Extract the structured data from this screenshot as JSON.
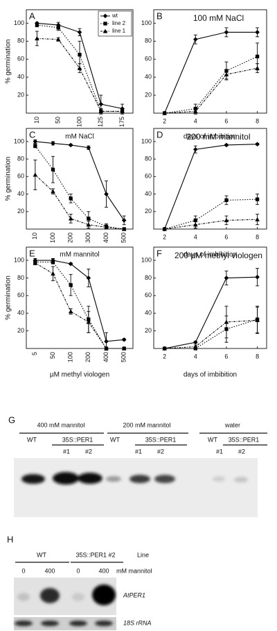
{
  "chart_data": [
    {
      "type": "line",
      "panel": "A",
      "ylabel": "% germination",
      "xlabel": "mM NaCl",
      "categories": [
        "10",
        "50",
        "100",
        "125",
        "175"
      ],
      "ylim": [
        0,
        115
      ],
      "yticks": [
        20,
        40,
        60,
        80,
        100
      ],
      "legend": "upper right",
      "series": [
        {
          "name": "wt",
          "color": "#000",
          "marker": "diamond",
          "dash": "solid",
          "values": [
            100,
            98,
            90,
            10,
            5
          ],
          "errors": [
            1,
            3,
            4,
            10,
            5
          ]
        },
        {
          "name": "line 2",
          "color": "#000",
          "marker": "square",
          "dash": "dotted",
          "values": [
            98,
            95,
            65,
            2,
            2
          ],
          "errors": [
            2,
            3,
            15,
            3,
            3
          ]
        },
        {
          "name": "line 1",
          "color": "#000",
          "marker": "triangle",
          "dash": "dashdot",
          "values": [
            83,
            82,
            50,
            2,
            2
          ],
          "errors": [
            8,
            2,
            5,
            2,
            2
          ]
        }
      ]
    },
    {
      "type": "line",
      "panel": "B",
      "title": "100 mM NaCl",
      "xlabel": "days of imbibition",
      "x": [
        2,
        4,
        6,
        8
      ],
      "xlim": [
        1.3,
        8.6
      ],
      "xticks": [
        2,
        4,
        6,
        8
      ],
      "ylim": [
        0,
        115
      ],
      "yticks": [
        20,
        40,
        60,
        80,
        100
      ],
      "series": [
        {
          "name": "wt",
          "color": "#000",
          "marker": "diamond",
          "dash": "solid",
          "values": [
            0,
            82,
            90,
            90
          ],
          "errors": [
            0,
            5,
            5,
            5
          ]
        },
        {
          "name": "line 2",
          "color": "#000",
          "marker": "square",
          "dash": "dotted",
          "values": [
            0,
            5,
            47,
            63
          ],
          "errors": [
            0,
            5,
            10,
            15
          ]
        },
        {
          "name": "line 1",
          "color": "#000",
          "marker": "triangle",
          "dash": "dashdot",
          "values": [
            0,
            2,
            43,
            50
          ],
          "errors": [
            0,
            3,
            5,
            5
          ]
        }
      ]
    },
    {
      "type": "line",
      "panel": "C",
      "ylabel": "% germination",
      "xlabel": "mM mannitol",
      "categories": [
        "10",
        "100",
        "200",
        "300",
        "400",
        "500"
      ],
      "ylim": [
        0,
        115
      ],
      "yticks": [
        20,
        40,
        60,
        80,
        100
      ],
      "series": [
        {
          "name": "wt",
          "color": "#000",
          "marker": "diamond",
          "dash": "solid",
          "values": [
            100,
            98,
            96,
            93,
            40,
            10
          ],
          "errors": [
            2,
            2,
            1,
            2,
            15,
            5
          ]
        },
        {
          "name": "line 2",
          "color": "#000",
          "marker": "square",
          "dash": "dotted",
          "values": [
            95,
            68,
            35,
            12,
            3,
            0
          ],
          "errors": [
            2,
            15,
            5,
            8,
            3,
            1
          ]
        },
        {
          "name": "line 1",
          "color": "#000",
          "marker": "triangle",
          "dash": "dashdot",
          "values": [
            62,
            43,
            12,
            5,
            2,
            0
          ],
          "errors": [
            17,
            3,
            5,
            4,
            2,
            1
          ]
        }
      ]
    },
    {
      "type": "line",
      "panel": "D",
      "title": "200 mM mannitol",
      "xlabel": "days of imbibition",
      "x": [
        2,
        4,
        6,
        8
      ],
      "xlim": [
        1.3,
        8.6
      ],
      "xticks": [
        2,
        4,
        6,
        8
      ],
      "ylim": [
        0,
        115
      ],
      "yticks": [
        20,
        40,
        60,
        80,
        100
      ],
      "series": [
        {
          "name": "wt",
          "color": "#000",
          "marker": "diamond",
          "dash": "solid",
          "values": [
            0,
            91,
            96,
            97
          ],
          "errors": [
            0,
            4,
            1,
            1
          ]
        },
        {
          "name": "line 2",
          "color": "#000",
          "marker": "square",
          "dash": "dotted",
          "values": [
            0,
            10,
            33,
            34
          ],
          "errors": [
            0,
            5,
            5,
            6
          ]
        },
        {
          "name": "line 1",
          "color": "#000",
          "marker": "triangle",
          "dash": "dashdot",
          "values": [
            0,
            5,
            10,
            11
          ],
          "errors": [
            0,
            4,
            5,
            6
          ]
        }
      ]
    },
    {
      "type": "line",
      "panel": "E",
      "ylabel": "% germination",
      "xlabel": "µM methyl viologen",
      "categories": [
        "5",
        "50",
        "100",
        "200",
        "400",
        "500"
      ],
      "ylim": [
        0,
        115
      ],
      "yticks": [
        20,
        40,
        60,
        80,
        100
      ],
      "series": [
        {
          "name": "wt",
          "color": "#000",
          "marker": "diamond",
          "dash": "solid",
          "values": [
            100,
            100,
            96,
            80,
            8,
            10
          ],
          "errors": [
            2,
            2,
            1,
            10,
            10,
            1
          ]
        },
        {
          "name": "line 2",
          "color": "#000",
          "marker": "square",
          "dash": "dotted",
          "values": [
            98,
            98,
            72,
            33,
            0,
            0
          ],
          "errors": [
            2,
            2,
            12,
            15,
            1,
            1
          ]
        },
        {
          "name": "line 1",
          "color": "#000",
          "marker": "triangle",
          "dash": "dashdot",
          "values": [
            97,
            85,
            42,
            30,
            0,
            0
          ],
          "errors": [
            2,
            8,
            3,
            12,
            1,
            1
          ]
        }
      ]
    },
    {
      "type": "line",
      "panel": "F",
      "title": "200 µM methyl viologen",
      "xlabel": "days of imbibition",
      "x": [
        2,
        4,
        6,
        8
      ],
      "xlim": [
        1.3,
        8.6
      ],
      "xticks": [
        2,
        4,
        6,
        8
      ],
      "ylim": [
        0,
        115
      ],
      "yticks": [
        20,
        40,
        60,
        80,
        100
      ],
      "series": [
        {
          "name": "wt",
          "color": "#000",
          "marker": "diamond",
          "dash": "solid",
          "values": [
            0,
            7,
            80,
            81
          ],
          "errors": [
            0,
            1,
            8,
            10
          ]
        },
        {
          "name": "line 2",
          "color": "#000",
          "marker": "square",
          "dash": "dotted",
          "values": [
            0,
            0,
            22,
            33
          ],
          "errors": [
            0,
            1,
            15,
            15
          ]
        },
        {
          "name": "line 1",
          "color": "#000",
          "marker": "triangle",
          "dash": "dashdot",
          "values": [
            0,
            2,
            30,
            32
          ],
          "errors": [
            0,
            2,
            18,
            15
          ]
        }
      ]
    }
  ],
  "blots": {
    "G": {
      "label": "G",
      "groups": [
        {
          "title": "400 mM mannitol",
          "wt": "WT",
          "line": "35S::PER1",
          "n1": "#1",
          "n2": "#2"
        },
        {
          "title": "200 mM mannitol",
          "wt": "WT",
          "line": "35S::PER1",
          "n1": "#1",
          "n2": "#2"
        },
        {
          "title": "water",
          "wt": "WT",
          "line": "35S::PER1",
          "n1": "#1",
          "n2": "#2"
        }
      ]
    },
    "H": {
      "label": "H",
      "wt": "WT",
      "line": "35S::PER1 #2",
      "line_caption": "Line",
      "doses": [
        "0",
        "400",
        "0",
        "400"
      ],
      "dose_unit": "mM mannitol",
      "probe": "AtPER1",
      "control": "18S rRNA"
    }
  }
}
